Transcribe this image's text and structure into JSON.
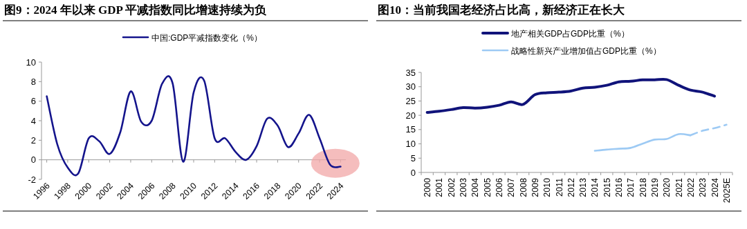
{
  "chart_data": [
    {
      "type": "line",
      "title": "图9：2024 年以来 GDP 平减指数同比增速持续为负",
      "legend": "top",
      "grid": false,
      "x": [
        1996,
        1997,
        1998,
        1999,
        2000,
        2001,
        2002,
        2003,
        2004,
        2005,
        2006,
        2007,
        2008,
        2009,
        2010,
        2011,
        2012,
        2013,
        2014,
        2015,
        2016,
        2017,
        2018,
        2019,
        2020,
        2021,
        2022,
        2023,
        2024
      ],
      "xlim": [
        1995.5,
        2024.5
      ],
      "xticks": [
        1996,
        1998,
        2000,
        2002,
        2004,
        2006,
        2008,
        2010,
        2012,
        2014,
        2016,
        2018,
        2020,
        2022,
        2024
      ],
      "ylim": [
        -2,
        10
      ],
      "yticks": [
        -2,
        0,
        2,
        4,
        6,
        8,
        10
      ],
      "series": [
        {
          "name": "中国:GDP平减指数变化（%）",
          "color": "#14148c",
          "values": [
            6.5,
            1.6,
            -0.8,
            -1.4,
            2.2,
            1.9,
            0.6,
            2.8,
            7.0,
            3.9,
            4.0,
            7.8,
            7.8,
            -0.2,
            6.9,
            8.1,
            2.2,
            2.2,
            0.8,
            0.0,
            1.4,
            4.2,
            3.5,
            1.3,
            2.7,
            4.6,
            2.2,
            -0.5,
            -0.7
          ]
        }
      ]
    },
    {
      "type": "line",
      "title": "图10：当前我国老经济占比高，新经济正在长大",
      "legend": "top",
      "grid": false,
      "categories": [
        "2000",
        "2001",
        "2002",
        "2003",
        "2004",
        "2005",
        "2006",
        "2007",
        "2008",
        "2009",
        "2010",
        "2011",
        "2012",
        "2013",
        "2014",
        "2015",
        "2016",
        "2017",
        "2018",
        "2019",
        "2020",
        "2021",
        "2022",
        "2023",
        "2024",
        "2025E"
      ],
      "ylim": [
        0,
        35
      ],
      "yticks": [
        0,
        5,
        10,
        15,
        20,
        25,
        30,
        35
      ],
      "series": [
        {
          "name": "地产相关GDP占GDP比重（%）",
          "color": "#10137a",
          "values": [
            21.0,
            21.4,
            22.0,
            22.7,
            22.5,
            22.8,
            23.5,
            24.7,
            23.8,
            27.2,
            27.9,
            28.1,
            28.5,
            29.5,
            29.8,
            30.5,
            31.7,
            31.9,
            32.4,
            32.4,
            32.5,
            30.5,
            28.8,
            28.1,
            26.7,
            null
          ]
        },
        {
          "name": "战略性新兴产业增加值占GDP比重（%）",
          "color": "#9dcaf4",
          "values": [
            null,
            null,
            null,
            null,
            null,
            null,
            null,
            null,
            null,
            null,
            null,
            null,
            null,
            null,
            7.6,
            8.0,
            8.3,
            8.6,
            10.1,
            11.5,
            11.7,
            13.4,
            13.0,
            null,
            null,
            null
          ]
        },
        {
          "color": "#9dcaf4",
          "line_style": "dashed",
          "values": [
            null,
            null,
            null,
            null,
            null,
            null,
            null,
            null,
            null,
            null,
            null,
            null,
            null,
            null,
            null,
            null,
            null,
            null,
            null,
            null,
            null,
            null,
            13.0,
            14.6,
            15.5,
            16.7
          ]
        }
      ]
    }
  ]
}
